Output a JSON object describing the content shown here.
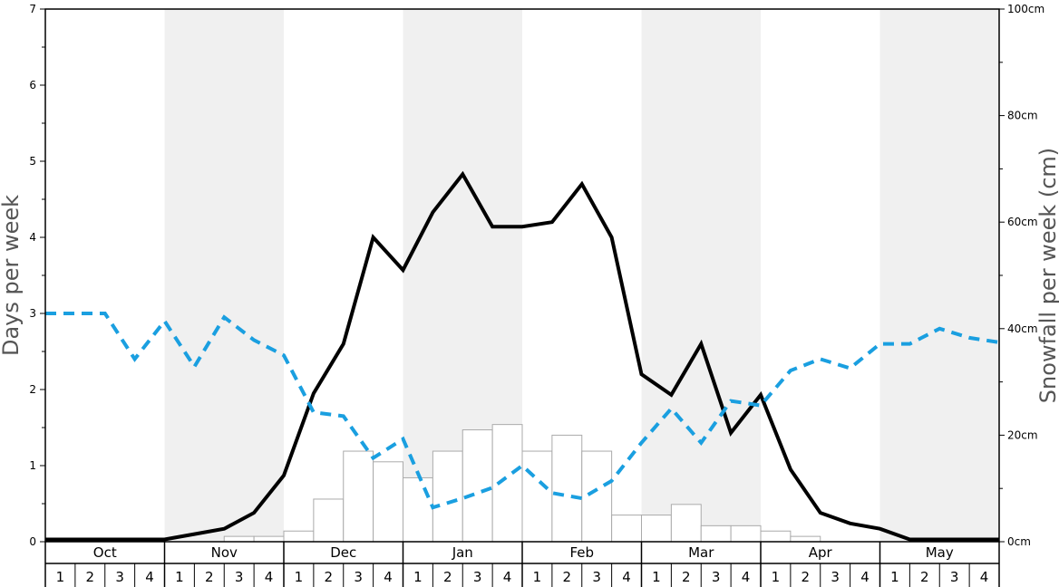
{
  "chart_data": {
    "type": "bar+line",
    "ylabel_left": "Days per week",
    "ylabel_right": "Snowfall per week (cm)",
    "ylim_left": [
      0,
      7
    ],
    "ylim_right": [
      0,
      100
    ],
    "left_ticks": [
      "0",
      "1",
      "2",
      "3",
      "4",
      "5",
      "6",
      "7"
    ],
    "right_ticks": [
      "0cm",
      "20cm",
      "40cm",
      "60cm",
      "80cm",
      "100cm"
    ],
    "months": [
      "Oct",
      "Nov",
      "Dec",
      "Jan",
      "Feb",
      "Mar",
      "Apr",
      "May"
    ],
    "weeks": [
      "1",
      "2",
      "3",
      "4"
    ],
    "colors": {
      "snowfall_bars": "#ffffff",
      "snowfall_bar_edge": "#aaaaaa",
      "solid_line": "#000000",
      "dashed_line": "#1a9fe0",
      "shade": "#f0f0f0"
    },
    "snowfall_cm": [
      0,
      0,
      0,
      0,
      0,
      0,
      1,
      1,
      2,
      8,
      17,
      15,
      12,
      17,
      21,
      22,
      17,
      20,
      17,
      5,
      5,
      7,
      3,
      3,
      2,
      1,
      0,
      0,
      0,
      0,
      0,
      0
    ],
    "series": [
      {
        "style": "solid",
        "values": [
          0.03,
          0.03,
          0.03,
          0.03,
          0.03,
          0.1,
          0.17,
          0.38,
          0.87,
          1.95,
          2.6,
          4.0,
          3.57,
          4.33,
          4.83,
          4.14,
          4.14,
          4.2,
          4.7,
          4.0,
          2.2,
          1.93,
          2.6,
          1.43,
          1.93,
          0.95,
          0.38,
          0.24,
          0.17,
          0.03,
          0.03,
          0.03,
          0.03
        ]
      },
      {
        "style": "dashed",
        "values": [
          3.0,
          3.0,
          3.0,
          2.4,
          2.9,
          2.3,
          2.95,
          2.65,
          2.45,
          1.7,
          1.65,
          1.1,
          1.35,
          0.45,
          0.57,
          0.71,
          1.0,
          0.64,
          0.57,
          0.8,
          1.3,
          1.75,
          1.3,
          1.85,
          1.79,
          2.25,
          2.4,
          2.28,
          2.6,
          2.6,
          2.8,
          2.68,
          2.62
        ]
      }
    ]
  }
}
